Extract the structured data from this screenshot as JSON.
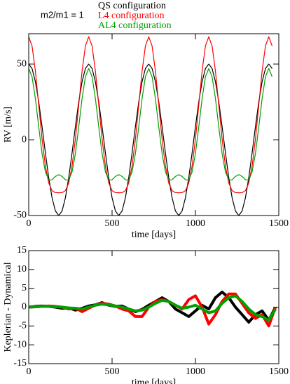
{
  "chart_data": [
    {
      "type": "line",
      "annotation": "m2/m1 = 1",
      "ylabel": "RV [m/s]",
      "xlabel": "time [days]",
      "xlim": [
        0,
        1500
      ],
      "xticks": [
        0,
        500,
        1000,
        1500
      ],
      "ylim": [
        -50,
        70
      ],
      "yticks": [
        -50,
        0,
        50
      ],
      "legend": "top",
      "x": [
        0,
        20,
        40,
        60,
        80,
        100,
        120,
        140,
        160,
        180,
        200,
        220,
        240,
        260,
        280,
        300,
        320,
        340,
        360,
        380,
        400,
        420,
        440,
        460,
        480,
        500,
        520,
        540,
        560,
        580,
        600,
        620,
        640,
        660,
        680,
        700,
        720,
        740,
        760,
        780,
        800,
        820,
        840,
        860,
        880,
        900,
        920,
        940,
        960,
        980,
        1000,
        1020,
        1040,
        1060,
        1080,
        1100,
        1120,
        1140,
        1160,
        1180,
        1200,
        1220,
        1240,
        1260,
        1280,
        1300,
        1320,
        1340,
        1360,
        1380,
        1400,
        1420,
        1440,
        1460
      ],
      "series": [
        {
          "name": "QS configuration",
          "color": "#000000",
          "values": [
            50,
            47,
            38.3,
            25,
            8.7,
            -8.7,
            -25,
            -38.3,
            -47,
            -50,
            -47,
            -38.3,
            -25,
            -8.7,
            8.7,
            25,
            38.3,
            47,
            50,
            47,
            38.3,
            25,
            8.7,
            -8.7,
            -25,
            -38.3,
            -47,
            -50,
            -47,
            -38.3,
            -25,
            -8.7,
            8.7,
            25,
            38.3,
            47,
            50,
            47,
            38.3,
            25,
            8.7,
            -8.7,
            -25,
            -38.3,
            -47,
            -50,
            -47,
            -38.3,
            -25,
            -8.7,
            8.7,
            25,
            38.3,
            47,
            50,
            47,
            38.3,
            25,
            8.7,
            -8.7,
            -25,
            -38.3,
            -47,
            -50,
            -47,
            -38.3,
            -25,
            -8.7,
            8.7,
            25,
            38.3,
            47,
            50,
            47
          ]
        },
        {
          "name": "L4 configuration",
          "color": "#ff0000",
          "values": [
            68,
            61.9,
            45.3,
            22.9,
            0.5,
            -17.4,
            -28.6,
            -33.6,
            -34.9,
            -35,
            -34.9,
            -33.6,
            -28.6,
            -17.4,
            0.5,
            22.9,
            45.3,
            61.9,
            68,
            61.9,
            45.3,
            22.9,
            0.5,
            -17.4,
            -28.6,
            -33.6,
            -34.9,
            -35,
            -34.9,
            -33.6,
            -28.6,
            -17.4,
            0.5,
            22.9,
            45.3,
            61.9,
            68,
            61.9,
            45.3,
            22.9,
            0.5,
            -17.4,
            -28.6,
            -33.6,
            -34.9,
            -35,
            -34.9,
            -33.6,
            -28.6,
            -17.4,
            0.5,
            22.9,
            45.3,
            61.9,
            68,
            61.9,
            45.3,
            22.9,
            0.5,
            -17.4,
            -28.6,
            -33.6,
            -34.9,
            -35,
            -34.9,
            -33.6,
            -28.6,
            -17.4,
            0.5,
            22.9,
            45.3,
            61.9,
            68,
            61.9
          ]
        },
        {
          "name": "AL4 configuration",
          "color": "#00a000",
          "values": [
            47,
            41.6,
            27.2,
            8.5,
            -9.1,
            -21.2,
            -26.5,
            -26.4,
            -24.2,
            -23,
            -24.2,
            -26.4,
            -26.5,
            -21.2,
            -9.1,
            8.5,
            27.2,
            41.6,
            47,
            41.6,
            27.2,
            8.5,
            -9.1,
            -21.2,
            -26.5,
            -26.4,
            -24.2,
            -23,
            -24.2,
            -26.4,
            -26.5,
            -21.2,
            -9.1,
            8.5,
            27.2,
            41.6,
            47,
            41.6,
            27.2,
            8.5,
            -9.1,
            -21.2,
            -26.5,
            -26.4,
            -24.2,
            -23,
            -24.2,
            -26.4,
            -26.5,
            -21.2,
            -9.1,
            8.5,
            27.2,
            41.6,
            47,
            41.6,
            27.2,
            8.5,
            -9.1,
            -21.2,
            -26.5,
            -26.4,
            -24.2,
            -23,
            -24.2,
            -26.4,
            -26.5,
            -21.2,
            -9.1,
            8.5,
            27.2,
            41.6,
            47,
            41.6
          ]
        }
      ]
    },
    {
      "type": "line",
      "ylabel": "Keplerian - Dynamical",
      "xlabel": "time [days]",
      "xlim": [
        0,
        1500
      ],
      "xticks": [
        0,
        500,
        1000,
        1500
      ],
      "ylim": [
        -15,
        15
      ],
      "yticks": [
        -15,
        -10,
        -5,
        0,
        5,
        10,
        15
      ],
      "x": [
        0,
        40,
        80,
        120,
        160,
        200,
        240,
        280,
        320,
        360,
        400,
        440,
        480,
        520,
        560,
        600,
        640,
        680,
        720,
        760,
        800,
        840,
        880,
        920,
        960,
        1000,
        1040,
        1080,
        1120,
        1160,
        1200,
        1240,
        1280,
        1320,
        1360,
        1400,
        1440,
        1480
      ],
      "series": [
        {
          "color": "#000000",
          "values": [
            0,
            0.2,
            0.3,
            0.2,
            0,
            -0.3,
            -0.2,
            -0.8,
            -0.3,
            0.3,
            0.6,
            1.2,
            0.5,
            0.2,
            0.3,
            -0.5,
            -1.2,
            -0.6,
            0.5,
            1.5,
            2.5,
            1.5,
            -0.5,
            -1.5,
            -2.5,
            -1.0,
            0.5,
            -0.5,
            2.5,
            4.0,
            2.5,
            0,
            -2.0,
            -4.0,
            -2.0,
            -1.0,
            -3.5,
            0
          ]
        },
        {
          "color": "#ff0000",
          "values": [
            0,
            0.1,
            0.2,
            0.3,
            0.2,
            0,
            -0.5,
            -0.3,
            -1.2,
            -0.3,
            0.6,
            1.0,
            0.8,
            0.3,
            -0.5,
            -1.0,
            -2.5,
            -2.5,
            0,
            1.5,
            2.0,
            1.5,
            0.5,
            -0.5,
            2.0,
            3.0,
            0,
            -4.5,
            -2.0,
            1.5,
            3.5,
            3.5,
            1.0,
            -1.5,
            -3.0,
            -2.0,
            -5.0,
            0
          ]
        },
        {
          "color": "#00a000",
          "values": [
            0,
            0.1,
            0.2,
            0.2,
            0.1,
            0,
            -0.2,
            -0.3,
            -0.5,
            0,
            0.5,
            0.8,
            0.6,
            0.3,
            0,
            -0.5,
            -1.0,
            -0.8,
            0,
            1.0,
            1.8,
            1.5,
            0.5,
            -0.3,
            0,
            0.5,
            -0.5,
            -1.5,
            -1.0,
            1.0,
            2.5,
            3.0,
            1.5,
            -0.5,
            -2.0,
            -2.5,
            -3.5,
            -0.5
          ]
        }
      ]
    }
  ]
}
